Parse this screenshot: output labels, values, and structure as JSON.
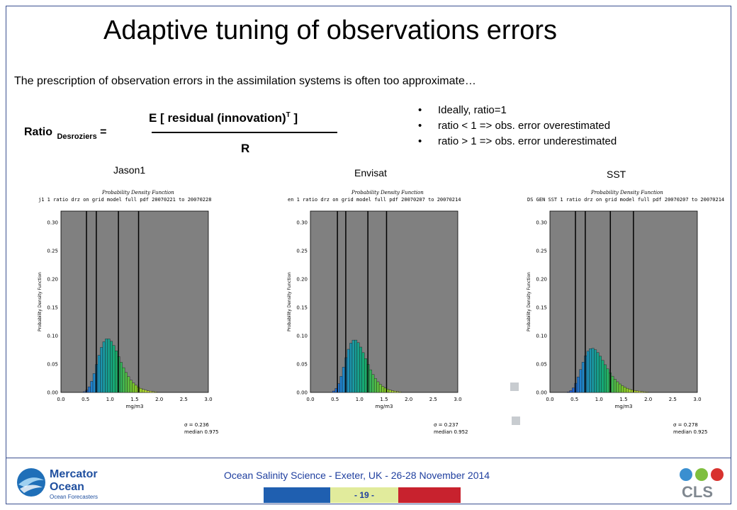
{
  "slide": {
    "title": "Adaptive tuning of observations errors",
    "subtitle": "The prescription of observation errors in the assimilation systems is often too approximate…"
  },
  "formula": {
    "ratio": "Ratio",
    "ratio_sub": "Desroziers",
    "equals": "=",
    "numerator_pre": "E [ residual (innovation)",
    "numerator_sup": "T",
    "numerator_post": " ]",
    "denominator": "R"
  },
  "bullets": [
    "Ideally, ratio=1",
    "ratio < 1  => obs. error overestimated",
    "ratio > 1  => obs. error underestimated"
  ],
  "charts": [
    {
      "label": "Jason1",
      "header": "Probability Density Function",
      "caption": "j1 1 ratio drz on grid model full pdf 20070221 to 20070228",
      "ylabel": "Probability Density Function",
      "xlabel": "mg/m3",
      "xticks": [
        "0.0",
        "0.5",
        "1.0",
        "1.5",
        "2.0",
        "2.5",
        "3.0"
      ],
      "yticks": [
        "0.00",
        "0.05",
        "0.10",
        "0.15",
        "0.20",
        "0.25",
        "0.30"
      ],
      "sigma": "σ = 0.236",
      "median": "median 0.975"
    },
    {
      "label": "Envisat",
      "header": "Probability Density Function",
      "caption": "en 1 ratio drz on grid model full pdf 20070207 to 20070214",
      "ylabel": "Probability Density Function",
      "xlabel": "mg/m3",
      "xticks": [
        "0.0",
        "0.5",
        "1.0",
        "1.5",
        "2.0",
        "2.5",
        "3.0"
      ],
      "yticks": [
        "0.00",
        "0.05",
        "0.10",
        "0.15",
        "0.20",
        "0.25",
        "0.30"
      ],
      "sigma": "σ = 0.237",
      "median": "median 0.952"
    },
    {
      "label": "SST",
      "header": "Probability Density Function",
      "caption": "DS GEN SST 1 ratio drz on grid model full pdf 20070207 to 20070214",
      "ylabel": "Probability Density Function",
      "xlabel": "mg/m3",
      "xticks": [
        "0.0",
        "0.5",
        "1.0",
        "1.5",
        "2.0",
        "2.5",
        "3.0"
      ],
      "yticks": [
        "0.00",
        "0.05",
        "0.10",
        "0.15",
        "0.20",
        "0.25",
        "0.30"
      ],
      "sigma": "σ = 0.278",
      "median": "median 0.925"
    }
  ],
  "chart_data": [
    {
      "type": "bar",
      "title": "Probability Density Function",
      "xlabel": "mg/m3",
      "ylabel": "Probability Density Function",
      "xlim": [
        0,
        3
      ],
      "ylim": [
        0,
        0.32
      ],
      "vlines": [
        0.52,
        0.72,
        1.17,
        1.58
      ],
      "mean": 0.95,
      "sd": 0.236,
      "peak": 0.095
    },
    {
      "type": "bar",
      "title": "Probability Density Function",
      "xlabel": "mg/m3",
      "ylabel": "Probability Density Function",
      "xlabel2": "",
      "xlim": [
        0,
        3
      ],
      "ylim": [
        0,
        0.32
      ],
      "vlines": [
        0.55,
        0.72,
        1.17,
        1.55
      ],
      "mean": 0.9,
      "sd": 0.237,
      "peak": 0.093
    },
    {
      "type": "bar",
      "title": "Probability Density Function",
      "xlabel": "mg/m3",
      "ylabel": "Probability Density Function",
      "xlim": [
        0,
        3
      ],
      "ylim": [
        0,
        0.32
      ],
      "vlines": [
        0.52,
        0.72,
        1.23,
        1.7
      ],
      "mean": 0.86,
      "sd": 0.278,
      "peak": 0.078
    }
  ],
  "footer": {
    "event": "Ocean Salinity Science - Exeter, UK - 26-28 November 2014",
    "page": "- 19 -",
    "logo_left_line1": "Mercator",
    "logo_left_line2": "Ocean",
    "logo_left_tag": "Ocean Forecasters",
    "logo_right": "CLS",
    "colors": {
      "blue": "#1f5fb0",
      "green": "#e1eb9c",
      "red": "#c8222e",
      "text": "#1f3f9f"
    }
  }
}
